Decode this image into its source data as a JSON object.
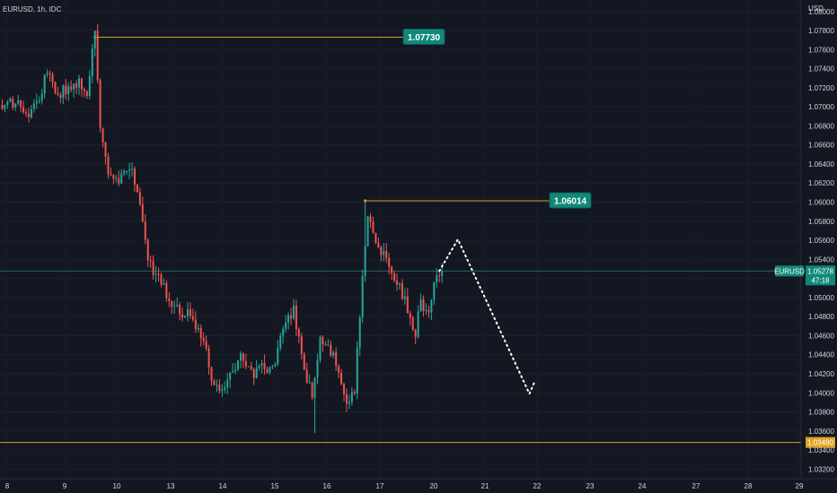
{
  "header": {
    "symbol_label": "EURUSD, 1h, IDC"
  },
  "axis": {
    "currency_label": "USD"
  },
  "colors": {
    "background": "#131722",
    "up": "#26a69a",
    "down": "#ef5350",
    "level_line": "#d6a21e",
    "badge": "#10897a",
    "support_badge": "#e0a526",
    "last_price_line": "#2b6d68",
    "projection": "#ffffff"
  },
  "chart_data": {
    "type": "candlestick",
    "title": "",
    "x_axis": {
      "tick_labels": [
        "8",
        "9",
        "10",
        "13",
        "14",
        "15",
        "16",
        "17",
        "20",
        "21",
        "22",
        "23",
        "24",
        "27",
        "28",
        "29"
      ]
    },
    "y_axis": {
      "range": [
        1.031,
        1.0812
      ],
      "tick_labels": [
        "1.08000",
        "1.07800",
        "1.07600",
        "1.07400",
        "1.07200",
        "1.07000",
        "1.06800",
        "1.06600",
        "1.06400",
        "1.06200",
        "1.06000",
        "1.05800",
        "1.05600",
        "1.05400",
        "1.05200",
        "1.05000",
        "1.04800",
        "1.04600",
        "1.04400",
        "1.04200",
        "1.04000",
        "1.03800",
        "1.03600",
        "1.03400",
        "1.03200"
      ]
    },
    "levels": [
      {
        "label": "1.07730",
        "price": 1.0773,
        "type": "resistance-high"
      },
      {
        "label": "1.06014",
        "price": 1.06014,
        "type": "resistance-swing"
      },
      {
        "label": "1.03480",
        "price": 1.0348,
        "type": "support"
      }
    ],
    "last_price": {
      "symbol": "EURUSD",
      "price_label": "1.05278",
      "price": 1.05278,
      "countdown": "47:18"
    },
    "projection": {
      "style": "dotted",
      "points": [
        {
          "bar": 165,
          "price": 1.05278
        },
        {
          "bar": 172,
          "price": 1.0561
        },
        {
          "bar": 199,
          "price": 1.0399
        },
        {
          "bar": 201,
          "price": 1.0412
        }
      ]
    },
    "path_anchors": [
      [
        0,
        1.0695
      ],
      [
        5,
        1.0708
      ],
      [
        10,
        1.0688
      ],
      [
        14,
        1.0712
      ],
      [
        17,
        1.0738
      ],
      [
        21,
        1.0715
      ],
      [
        26,
        1.0718
      ],
      [
        29,
        1.0728
      ],
      [
        32,
        1.0718
      ],
      [
        35,
        1.0773
      ],
      [
        37,
        1.0675
      ],
      [
        40,
        1.0632
      ],
      [
        44,
        1.062
      ],
      [
        48,
        1.0638
      ],
      [
        52,
        1.06
      ],
      [
        55,
        1.054
      ],
      [
        58,
        1.0522
      ],
      [
        62,
        1.0505
      ],
      [
        66,
        1.0488
      ],
      [
        71,
        1.0482
      ],
      [
        75,
        1.0462
      ],
      [
        79,
        1.0418
      ],
      [
        82,
        1.0402
      ],
      [
        86,
        1.0418
      ],
      [
        90,
        1.0441
      ],
      [
        95,
        1.0418
      ],
      [
        98,
        1.043
      ],
      [
        102,
        1.0425
      ],
      [
        105,
        1.0455
      ],
      [
        110,
        1.049
      ],
      [
        113,
        1.0438
      ],
      [
        117,
        1.0395
      ],
      [
        120,
        1.0462
      ],
      [
        124,
        1.0445
      ],
      [
        128,
        1.0412
      ],
      [
        130,
        1.0392
      ],
      [
        133,
        1.0402
      ],
      [
        136,
        1.052
      ],
      [
        138,
        1.059
      ],
      [
        141,
        1.056
      ],
      [
        144,
        1.0543
      ],
      [
        147,
        1.053
      ],
      [
        151,
        1.0505
      ],
      [
        154,
        1.048
      ],
      [
        156,
        1.0462
      ],
      [
        158,
        1.0495
      ],
      [
        161,
        1.0488
      ],
      [
        164,
        1.0522
      ],
      [
        166,
        1.05278
      ]
    ],
    "extremes": [
      {
        "bar": 35,
        "high": 1.0773
      },
      {
        "bar": 137,
        "high": 1.06014
      },
      {
        "bar": 118,
        "low": 1.0358
      }
    ]
  }
}
